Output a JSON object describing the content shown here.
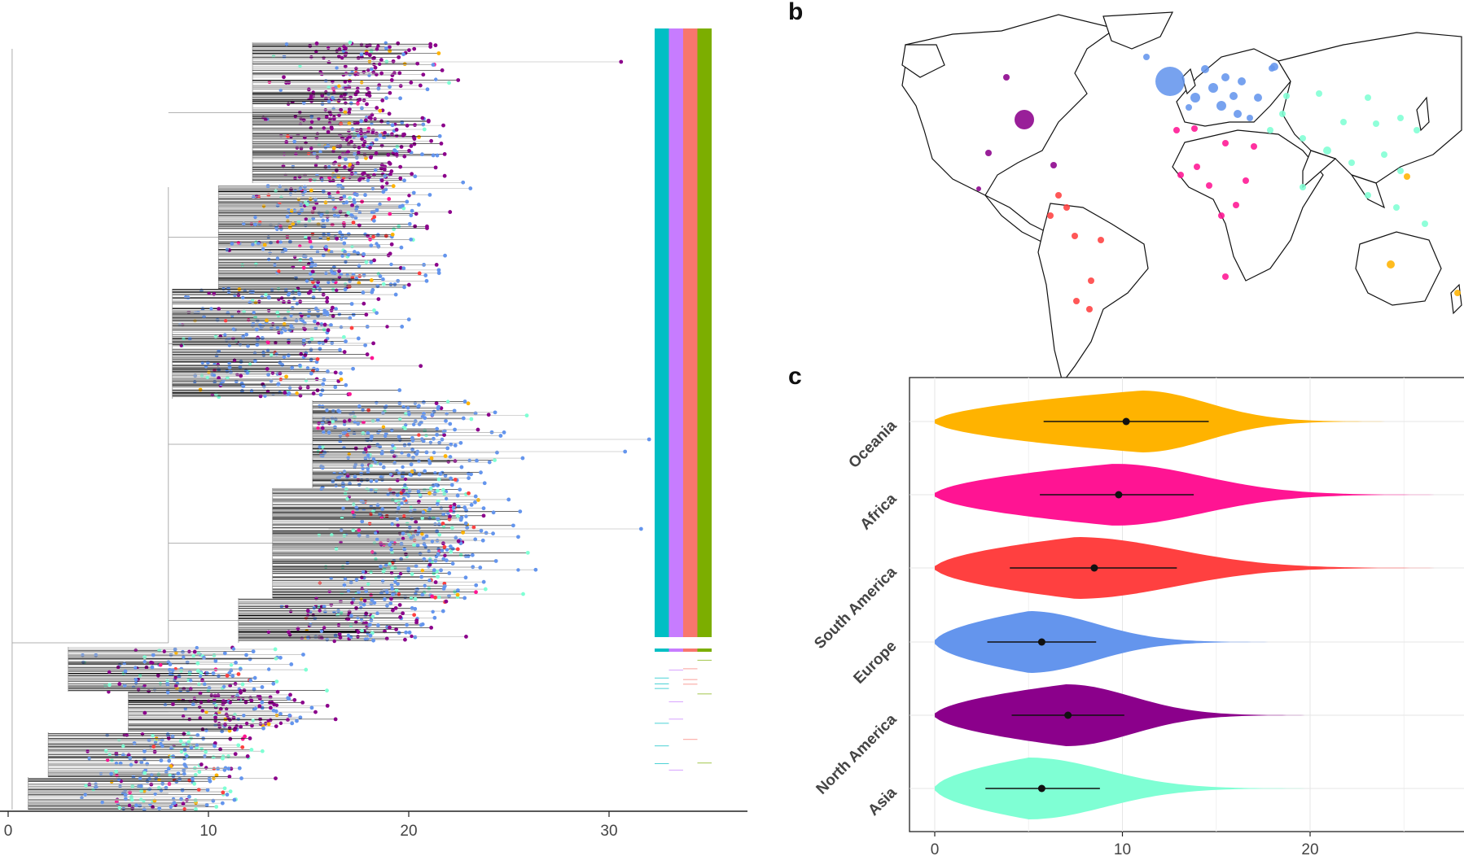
{
  "panels": [
    {
      "label": "b"
    },
    {
      "label": "c"
    }
  ],
  "colors": {
    "Asia": "#7FFFD4",
    "North America": "#8B008B",
    "Europe": "#6495ED",
    "South America": "#FF4040",
    "Africa": "#FF1493",
    "Oceania": "#FFB300"
  },
  "chart_data": [
    {
      "type": "tree",
      "xaxis": {
        "ticks": [
          "0",
          "10",
          "20",
          "30"
        ],
        "range": [
          0,
          37
        ]
      },
      "tip_colors": [
        "#8B008B",
        "#6495ED",
        "#7FFFD4",
        "#FFB300",
        "#FF4040",
        "#FF1493"
      ],
      "annotation_strip_colors": [
        "#00BFC4",
        "#C77CFF",
        "#F8766D",
        "#7CAE00"
      ]
    },
    {
      "type": "map",
      "points": [
        {
          "region": "North America",
          "size": "large"
        },
        {
          "region": "North America",
          "size": "small"
        },
        {
          "region": "Europe",
          "size": "large"
        },
        {
          "region": "Europe",
          "size": "small"
        },
        {
          "region": "Asia",
          "size": "small"
        },
        {
          "region": "Africa",
          "size": "small"
        },
        {
          "region": "South America",
          "size": "small"
        },
        {
          "region": "Oceania",
          "size": "small"
        }
      ]
    },
    {
      "type": "violin",
      "categories": [
        "Oceania",
        "Africa",
        "South America",
        "Europe",
        "North America",
        "Asia"
      ],
      "xaxis": {
        "ticks": [
          "0",
          "10",
          "20"
        ],
        "range": [
          0,
          28
        ]
      },
      "series": [
        {
          "name": "Oceania",
          "min": 0,
          "max": 24,
          "mode": 11,
          "median": 10.2,
          "lo": 5.8,
          "hi": 14.6
        },
        {
          "name": "Africa",
          "min": 0,
          "max": 27,
          "mode": 9.5,
          "median": 9.8,
          "lo": 5.6,
          "hi": 13.8
        },
        {
          "name": "South America",
          "min": 0,
          "max": 27,
          "mode": 7.5,
          "median": 8.5,
          "lo": 4.0,
          "hi": 12.9
        },
        {
          "name": "Europe",
          "min": 0,
          "max": 18,
          "mode": 5,
          "median": 5.7,
          "lo": 2.8,
          "hi": 8.6
        },
        {
          "name": "North America",
          "min": 0,
          "max": 20,
          "mode": 7,
          "median": 7.1,
          "lo": 4.1,
          "hi": 10.1
        },
        {
          "name": "Asia",
          "min": 0,
          "max": 20,
          "mode": 5,
          "median": 5.7,
          "lo": 2.7,
          "hi": 8.8
        }
      ]
    }
  ]
}
